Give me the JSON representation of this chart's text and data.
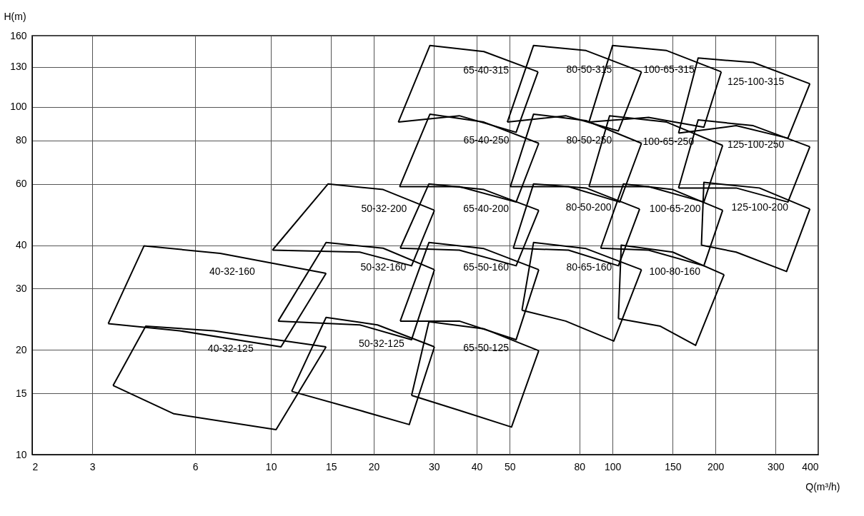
{
  "chart_data": {
    "type": "line",
    "xlabel": "Q(m³/h)",
    "ylabel": "H(m)",
    "log": "xy",
    "grid": true,
    "legend": false,
    "marker": "none",
    "line_style": "solid",
    "xlim": [
      2,
      400
    ],
    "xticks": [
      2,
      3,
      6,
      10,
      15,
      20,
      30,
      40,
      50,
      80,
      100,
      150,
      200,
      300,
      400
    ],
    "ylim": [
      10,
      160
    ],
    "yticks": [
      10,
      15,
      20,
      30,
      40,
      60,
      80,
      100,
      130,
      160
    ],
    "series": [
      {
        "name": "65-40-315",
        "color": "#000000",
        "x": [
          23.6,
          29.2,
          42,
          60.5
        ],
        "values": [
          90.3,
          150,
          144,
          126
        ]
      },
      {
        "color": "#000000",
        "x": [
          23.6,
          35.6,
          52.2,
          60.5
        ],
        "values": [
          90.3,
          94.2,
          84.4,
          126
        ]
      },
      {
        "name": "80-50-315",
        "color": "#000000",
        "x": [
          49.2,
          58.7,
          83.6,
          121.5
        ],
        "values": [
          90.3,
          150,
          145,
          126
        ]
      },
      {
        "color": "#000000",
        "x": [
          49.2,
          72.9,
          104,
          121.5
        ],
        "values": [
          90.3,
          94.2,
          85.2,
          126
        ]
      },
      {
        "name": "100-65-315",
        "color": "#000000",
        "x": [
          85.3,
          100,
          144,
          208
        ],
        "values": [
          90.3,
          150,
          145,
          126
        ]
      },
      {
        "color": "#000000",
        "x": [
          85.3,
          127.5,
          185,
          208
        ],
        "values": [
          90.3,
          93.2,
          87.3,
          126
        ]
      },
      {
        "name": "125-100-315",
        "color": "#000000",
        "x": [
          156,
          178,
          258,
          378
        ],
        "values": [
          84,
          138,
          134,
          116.4
        ]
      },
      {
        "color": "#000000",
        "x": [
          156,
          230,
          326,
          378
        ],
        "values": [
          84,
          88.2,
          81.2,
          116.4
        ]
      },
      {
        "name": "65-40-250",
        "color": "#000000",
        "x": [
          23.8,
          29.2,
          42,
          60.8
        ],
        "values": [
          58.9,
          95.2,
          90.3,
          78.5
        ]
      },
      {
        "color": "#000000",
        "x": [
          23.8,
          35.6,
          52.2,
          60.8
        ],
        "values": [
          58.9,
          58.9,
          53.2,
          78.5
        ]
      },
      {
        "name": "80-50-250",
        "color": "#000000",
        "x": [
          50.2,
          58.7,
          83.6,
          121.5
        ],
        "values": [
          58.9,
          95.2,
          91.2,
          78.5
        ]
      },
      {
        "color": "#000000",
        "x": [
          50.2,
          74.3,
          104.9,
          121.5
        ],
        "values": [
          58.9,
          58.9,
          53.2,
          78.5
        ]
      },
      {
        "name": "100-65-250",
        "color": "#000000",
        "x": [
          85.3,
          98,
          144,
          210
        ],
        "values": [
          58.9,
          94.2,
          90.3,
          77.4
        ]
      },
      {
        "color": "#000000",
        "x": [
          85.3,
          127.5,
          185,
          210
        ],
        "values": [
          58.9,
          58.9,
          53.2,
          77.4
        ]
      },
      {
        "name": "125-100-250",
        "color": "#000000",
        "x": [
          156,
          178,
          258,
          378
        ],
        "values": [
          58.4,
          91.6,
          88.2,
          76.7
        ]
      },
      {
        "color": "#000000",
        "x": [
          156,
          230,
          326,
          378
        ],
        "values": [
          58.4,
          58.4,
          53.2,
          76.7
        ]
      },
      {
        "name": "50-32-200",
        "color": "#000000",
        "x": [
          10.1,
          14.7,
          21.3,
          30.1
        ],
        "values": [
          38.7,
          60,
          57.8,
          50.4
        ]
      },
      {
        "color": "#000000",
        "x": [
          10.1,
          18.2,
          25.8,
          30.1
        ],
        "values": [
          38.7,
          38.2,
          34.9,
          50.4
        ]
      },
      {
        "name": "65-40-200",
        "color": "#000000",
        "x": [
          23.9,
          29,
          42,
          60.8
        ],
        "values": [
          39.2,
          60,
          57.8,
          50.4
        ]
      },
      {
        "color": "#000000",
        "x": [
          23.9,
          35.6,
          52.2,
          60.8
        ],
        "values": [
          39.2,
          38.7,
          34.9,
          50.4
        ]
      },
      {
        "name": "80-50-200",
        "color": "#000000",
        "x": [
          51.2,
          58.7,
          83.6,
          120
        ],
        "values": [
          39.2,
          60,
          58.4,
          50.8
        ]
      },
      {
        "color": "#000000",
        "x": [
          51.2,
          74.3,
          104,
          120
        ],
        "values": [
          39.2,
          38.7,
          34.9,
          50.8
        ]
      },
      {
        "name": "100-65-200",
        "color": "#000000",
        "x": [
          92.3,
          107.6,
          150,
          210
        ],
        "values": [
          39.2,
          60,
          57.8,
          50.4
        ]
      },
      {
        "color": "#000000",
        "x": [
          92.3,
          127.5,
          185,
          210
        ],
        "values": [
          39.2,
          38.7,
          34.9,
          50.4
        ]
      },
      {
        "name": "125-100-200",
        "color": "#000000",
        "x": [
          182,
          185,
          269,
          378
        ],
        "values": [
          40,
          60.6,
          58.4,
          50.8
        ]
      },
      {
        "color": "#000000",
        "x": [
          182,
          230,
          323,
          378
        ],
        "values": [
          40,
          38.2,
          33.6,
          50.8
        ]
      },
      {
        "name": "40-32-160",
        "color": "#000000",
        "x": [
          3.34,
          4.25,
          7.1,
          14.5
        ],
        "values": [
          23.8,
          39.8,
          37.9,
          33.2
        ]
      },
      {
        "color": "#000000",
        "x": [
          3.34,
          5.4,
          10.7,
          14.5
        ],
        "values": [
          23.8,
          22.7,
          20.4,
          33.2
        ]
      },
      {
        "name": "50-32-160",
        "color": "#000000",
        "x": [
          10.5,
          14.5,
          21.3,
          30.1
        ],
        "values": [
          24.2,
          40.7,
          39.2,
          34
        ]
      },
      {
        "color": "#000000",
        "x": [
          10.5,
          18.2,
          25.8,
          30.1
        ],
        "values": [
          24.2,
          23.6,
          21.4,
          34
        ]
      },
      {
        "name": "65-50-160",
        "color": "#000000",
        "x": [
          23.9,
          29,
          42,
          60.8
        ],
        "values": [
          24.2,
          40.7,
          39.1,
          34
        ]
      },
      {
        "color": "#000000",
        "x": [
          23.9,
          35.6,
          52.2,
          60.8
        ],
        "values": [
          24.2,
          24.2,
          21.4,
          34
        ]
      },
      {
        "name": "80-65-160",
        "color": "#000000",
        "x": [
          54.3,
          58.7,
          83.6,
          121.5
        ],
        "values": [
          26,
          40.7,
          39.1,
          34
        ]
      },
      {
        "color": "#000000",
        "x": [
          54.3,
          72.9,
          100.8,
          121.5
        ],
        "values": [
          26,
          24.2,
          21.2,
          34
        ]
      },
      {
        "name": "100-80-160",
        "color": "#000000",
        "x": [
          104,
          106,
          150,
          212
        ],
        "values": [
          24.6,
          40,
          38.2,
          32.9
        ]
      },
      {
        "color": "#000000",
        "x": [
          104,
          138,
          175,
          212
        ],
        "values": [
          24.6,
          23.4,
          20.6,
          32.9
        ]
      },
      {
        "name": "40-32-125",
        "color": "#000000",
        "x": [
          3.45,
          4.3,
          6.8,
          14.5
        ],
        "values": [
          15.8,
          23.4,
          22.7,
          20.4
        ]
      },
      {
        "color": "#000000",
        "x": [
          3.45,
          5.2,
          10.35,
          14.5
        ],
        "values": [
          15.8,
          13.1,
          11.8,
          20.4
        ]
      },
      {
        "name": "50-32-125",
        "color": "#000000",
        "x": [
          11.5,
          14.5,
          20.5,
          30.1
        ],
        "values": [
          15.2,
          24.8,
          23.6,
          20.4
        ]
      },
      {
        "color": "#000000",
        "x": [
          11.5,
          18.2,
          25.4,
          30.1
        ],
        "values": [
          15.2,
          13.4,
          12.2,
          20.4
        ]
      },
      {
        "name": "65-50-125",
        "color": "#000000",
        "x": [
          25.8,
          29,
          42,
          60.8
        ],
        "values": [
          14.8,
          24.1,
          23,
          19.9
        ]
      },
      {
        "color": "#000000",
        "x": [
          25.8,
          35.6,
          50.6,
          60.8
        ],
        "values": [
          14.8,
          13.4,
          12,
          19.9
        ]
      }
    ]
  }
}
